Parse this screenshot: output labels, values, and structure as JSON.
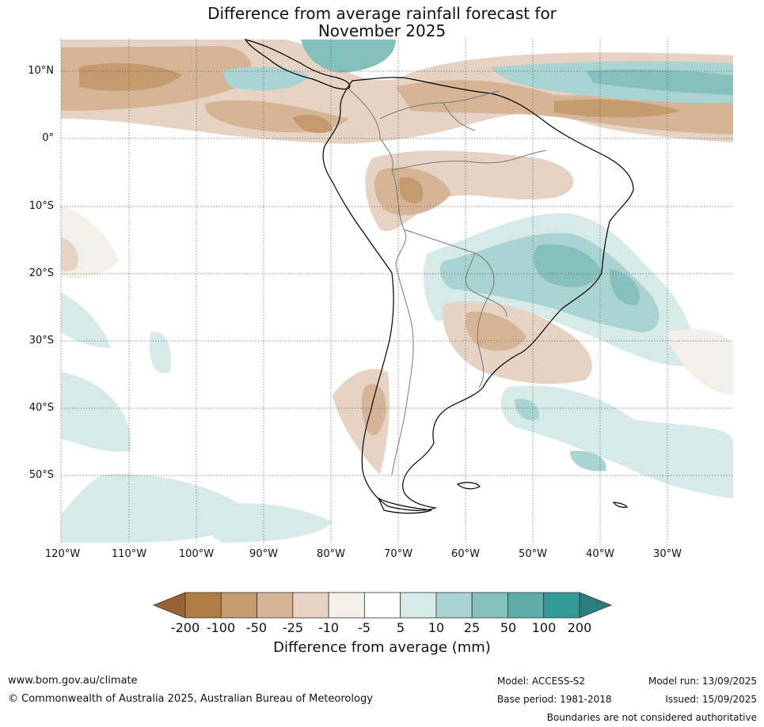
{
  "title": {
    "line1": "Difference from average rainfall forecast for",
    "line2": "November 2025"
  },
  "map": {
    "lat_labels": [
      "10°N",
      "0°",
      "10°S",
      "20°S",
      "30°S",
      "40°S",
      "50°S"
    ],
    "lon_labels": [
      "120°W",
      "110°W",
      "100°W",
      "90°W",
      "80°W",
      "70°W",
      "60°W",
      "50°W",
      "40°W",
      "30°W"
    ]
  },
  "legend": {
    "ticks": [
      "-200",
      "-100",
      "-50",
      "-25",
      "-10",
      "-5",
      "5",
      "10",
      "25",
      "50",
      "100",
      "200"
    ],
    "colors": [
      "#9a6232",
      "#b17d42",
      "#c49a6e",
      "#d5b595",
      "#e6d3c3",
      "#f3efe9",
      "#ffffff",
      "#d6eae8",
      "#a9d4d1",
      "#85c0bd",
      "#5fadaa",
      "#329b98",
      "#2a7e7d"
    ],
    "title": "Difference from average (mm)"
  },
  "footer": {
    "website": "www.bom.gov.au/climate",
    "copyright": "© Commonwealth of Australia 2025, Australian Bureau of Meteorology",
    "model": "Model: ACCESS-S2",
    "base_period": "Base period: 1981-2018",
    "model_run": "Model run: 13/09/2025",
    "issued": "Issued: 15/09/2025",
    "disclaimer": "Boundaries are not considered authoritative"
  }
}
